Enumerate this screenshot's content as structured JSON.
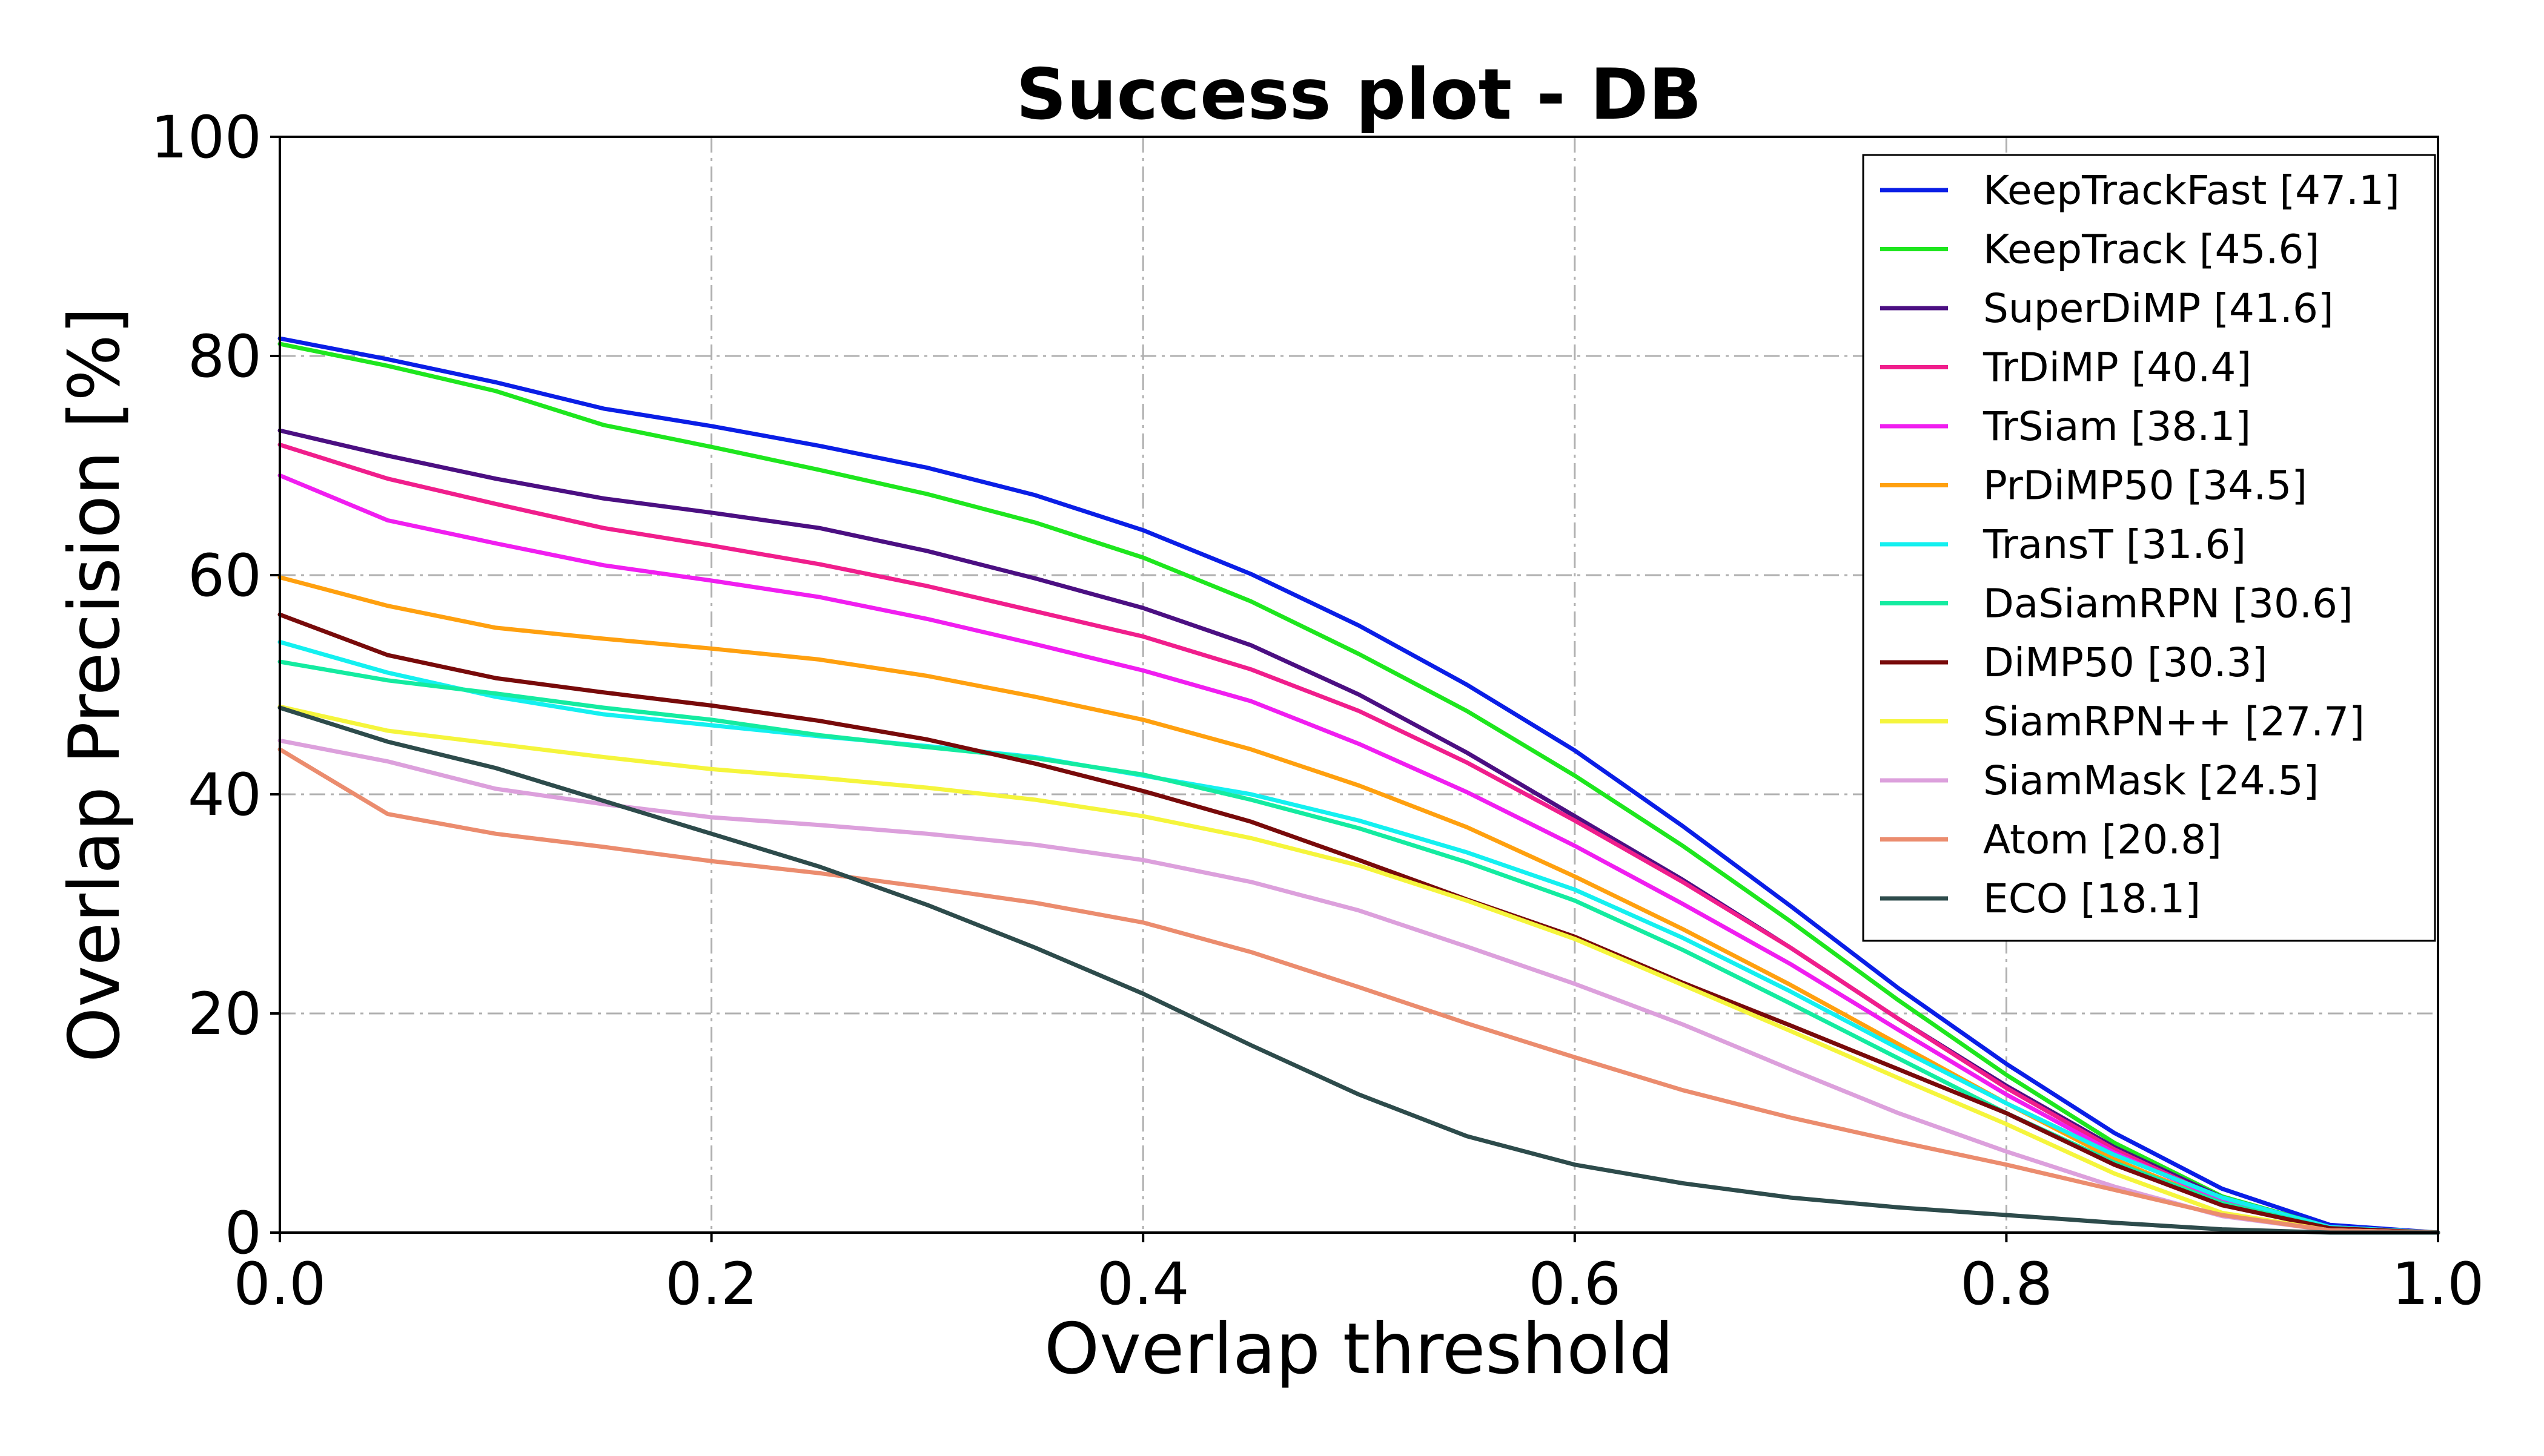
{
  "chart_data": {
    "type": "line",
    "title": "Success plot - DB",
    "xlabel": "Overlap threshold",
    "ylabel": "Overlap Precision [%]",
    "xlim": [
      0.0,
      1.0
    ],
    "ylim": [
      0,
      100
    ],
    "xticks": [
      "0.0",
      "0.2",
      "0.4",
      "0.6",
      "0.8",
      "1.0"
    ],
    "yticks": [
      "0",
      "20",
      "40",
      "60",
      "80",
      "100"
    ],
    "grid": true,
    "legend_position": "top-right",
    "x": [
      0.0,
      0.05,
      0.1,
      0.15,
      0.2,
      0.25,
      0.3,
      0.35,
      0.4,
      0.45,
      0.5,
      0.55,
      0.6,
      0.65,
      0.7,
      0.75,
      0.8,
      0.85,
      0.9,
      0.95,
      1.0
    ],
    "series": [
      {
        "name": "KeepTrackFast [47.1]",
        "color": "#0a1ee6",
        "values": [
          81.6,
          79.7,
          77.6,
          75.2,
          73.6,
          71.8,
          69.8,
          67.3,
          64.1,
          60.1,
          55.4,
          50.0,
          44.0,
          37.1,
          29.8,
          22.3,
          15.4,
          9.1,
          4.0,
          0.7,
          0.0
        ]
      },
      {
        "name": "KeepTrack [45.6]",
        "color": "#1ee61e",
        "values": [
          81.1,
          79.1,
          76.8,
          73.7,
          71.7,
          69.6,
          67.4,
          64.8,
          61.6,
          57.6,
          52.8,
          47.6,
          41.7,
          35.3,
          28.4,
          21.2,
          14.4,
          8.2,
          3.3,
          0.5,
          0.0
        ]
      },
      {
        "name": "SuperDiMP [41.6]",
        "color": "#4b0f82",
        "values": [
          73.2,
          70.9,
          68.8,
          67.0,
          65.7,
          64.3,
          62.2,
          59.7,
          57.0,
          53.6,
          49.1,
          43.8,
          38.0,
          32.2,
          26.0,
          19.5,
          13.4,
          7.8,
          3.2,
          0.5,
          0.0
        ]
      },
      {
        "name": "TrDiMP [40.4]",
        "color": "#f01e8c",
        "values": [
          71.9,
          68.8,
          66.5,
          64.3,
          62.7,
          61.0,
          59.0,
          56.7,
          54.4,
          51.4,
          47.6,
          42.9,
          37.6,
          32.0,
          26.0,
          19.5,
          13.2,
          7.6,
          3.0,
          0.5,
          0.0
        ]
      },
      {
        "name": "TrSiam [38.1]",
        "color": "#f01ef0",
        "values": [
          69.1,
          65.0,
          62.9,
          60.9,
          59.5,
          58.0,
          56.0,
          53.7,
          51.3,
          48.5,
          44.6,
          40.2,
          35.3,
          30.0,
          24.5,
          18.5,
          12.6,
          7.3,
          2.9,
          0.5,
          0.0
        ]
      },
      {
        "name": "PrDiMP50 [34.5]",
        "color": "#ffa00f",
        "values": [
          59.8,
          57.2,
          55.2,
          54.2,
          53.3,
          52.3,
          50.8,
          48.9,
          46.8,
          44.1,
          40.8,
          37.0,
          32.5,
          27.7,
          22.6,
          17.2,
          11.8,
          6.7,
          2.6,
          0.4,
          0.0
        ]
      },
      {
        "name": "TransT [31.6]",
        "color": "#14f0f0",
        "values": [
          53.9,
          51.1,
          48.9,
          47.3,
          46.3,
          45.3,
          44.4,
          43.4,
          41.7,
          40.0,
          37.6,
          34.7,
          31.3,
          26.9,
          22.0,
          16.8,
          11.8,
          7.1,
          3.2,
          0.5,
          0.0
        ]
      },
      {
        "name": "DaSiamRPN [30.6]",
        "color": "#14eba0",
        "values": [
          52.1,
          50.4,
          49.2,
          47.9,
          46.8,
          45.4,
          44.3,
          43.3,
          41.8,
          39.5,
          36.9,
          33.8,
          30.3,
          25.8,
          20.9,
          15.9,
          10.9,
          6.4,
          2.7,
          0.4,
          0.0
        ]
      },
      {
        "name": "DiMP50 [30.3]",
        "color": "#780a0a",
        "values": [
          56.4,
          52.7,
          50.6,
          49.3,
          48.1,
          46.7,
          45.0,
          42.8,
          40.3,
          37.5,
          34.0,
          30.4,
          27.0,
          22.8,
          18.9,
          14.9,
          10.9,
          6.2,
          2.5,
          0.4,
          0.0
        ]
      },
      {
        "name": "SiamRPN++ [27.7]",
        "color": "#f5f53c",
        "values": [
          48.0,
          45.8,
          44.6,
          43.4,
          42.3,
          41.5,
          40.6,
          39.5,
          38.0,
          36.0,
          33.5,
          30.3,
          26.8,
          22.6,
          18.4,
          14.1,
          9.9,
          5.4,
          1.8,
          0.2,
          0.0
        ]
      },
      {
        "name": "SiamMask [24.5]",
        "color": "#dca0dc",
        "values": [
          44.9,
          43.0,
          40.5,
          39.1,
          37.9,
          37.2,
          36.4,
          35.4,
          34.0,
          32.0,
          29.4,
          26.1,
          22.7,
          19.0,
          14.9,
          10.9,
          7.4,
          4.2,
          1.5,
          0.2,
          0.0
        ]
      },
      {
        "name": "Atom [20.8]",
        "color": "#eb8c6e",
        "values": [
          44.1,
          38.2,
          36.4,
          35.2,
          33.9,
          32.8,
          31.5,
          30.1,
          28.3,
          25.6,
          22.4,
          19.1,
          16.0,
          13.0,
          10.5,
          8.3,
          6.2,
          3.9,
          1.6,
          0.2,
          0.0
        ]
      },
      {
        "name": "ECO [18.1]",
        "color": "#2d4b4b",
        "values": [
          47.9,
          44.8,
          42.4,
          39.4,
          36.4,
          33.4,
          29.9,
          26.0,
          21.8,
          17.1,
          12.6,
          8.8,
          6.2,
          4.5,
          3.2,
          2.3,
          1.6,
          0.9,
          0.3,
          0.0,
          0.0
        ]
      }
    ]
  }
}
